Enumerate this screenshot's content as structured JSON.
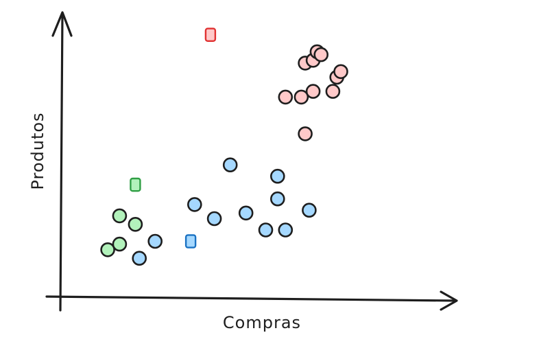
{
  "chart_data": {
    "type": "scatter",
    "xlabel": "Compras",
    "ylabel": "Produtos",
    "xlim": [
      0,
      100
    ],
    "ylim": [
      0,
      100
    ],
    "series": [
      {
        "marker": "circle",
        "color": "#b2f2bb",
        "points": [
          [
            12,
            18
          ],
          [
            15,
            20
          ],
          [
            15,
            30
          ],
          [
            19,
            27
          ]
        ]
      },
      {
        "marker": "circle",
        "color": "#a5d8ff",
        "points": [
          [
            20,
            15
          ],
          [
            24,
            21
          ],
          [
            34,
            34
          ],
          [
            39,
            29
          ],
          [
            43,
            48
          ],
          [
            47,
            31
          ],
          [
            52,
            25
          ],
          [
            55,
            36
          ],
          [
            55,
            44
          ],
          [
            57,
            25
          ],
          [
            63,
            32
          ]
        ]
      },
      {
        "marker": "circle",
        "color": "#ffc9c9",
        "points": [
          [
            57,
            72
          ],
          [
            61,
            72
          ],
          [
            62,
            59
          ],
          [
            62,
            84
          ],
          [
            64,
            74
          ],
          [
            64,
            85
          ],
          [
            65,
            88
          ],
          [
            66,
            87
          ],
          [
            69,
            74
          ],
          [
            70,
            79
          ],
          [
            71,
            81
          ]
        ]
      },
      {
        "marker": "square",
        "color": "#b2f2bb",
        "stroke": "#2f9e44",
        "points": [
          [
            19,
            41
          ]
        ]
      },
      {
        "marker": "square",
        "color": "#a5d8ff",
        "stroke": "#1971c2",
        "points": [
          [
            33,
            21
          ]
        ]
      },
      {
        "marker": "square",
        "color": "#ffc9c9",
        "stroke": "#e03131",
        "points": [
          [
            38,
            94
          ]
        ]
      }
    ]
  }
}
